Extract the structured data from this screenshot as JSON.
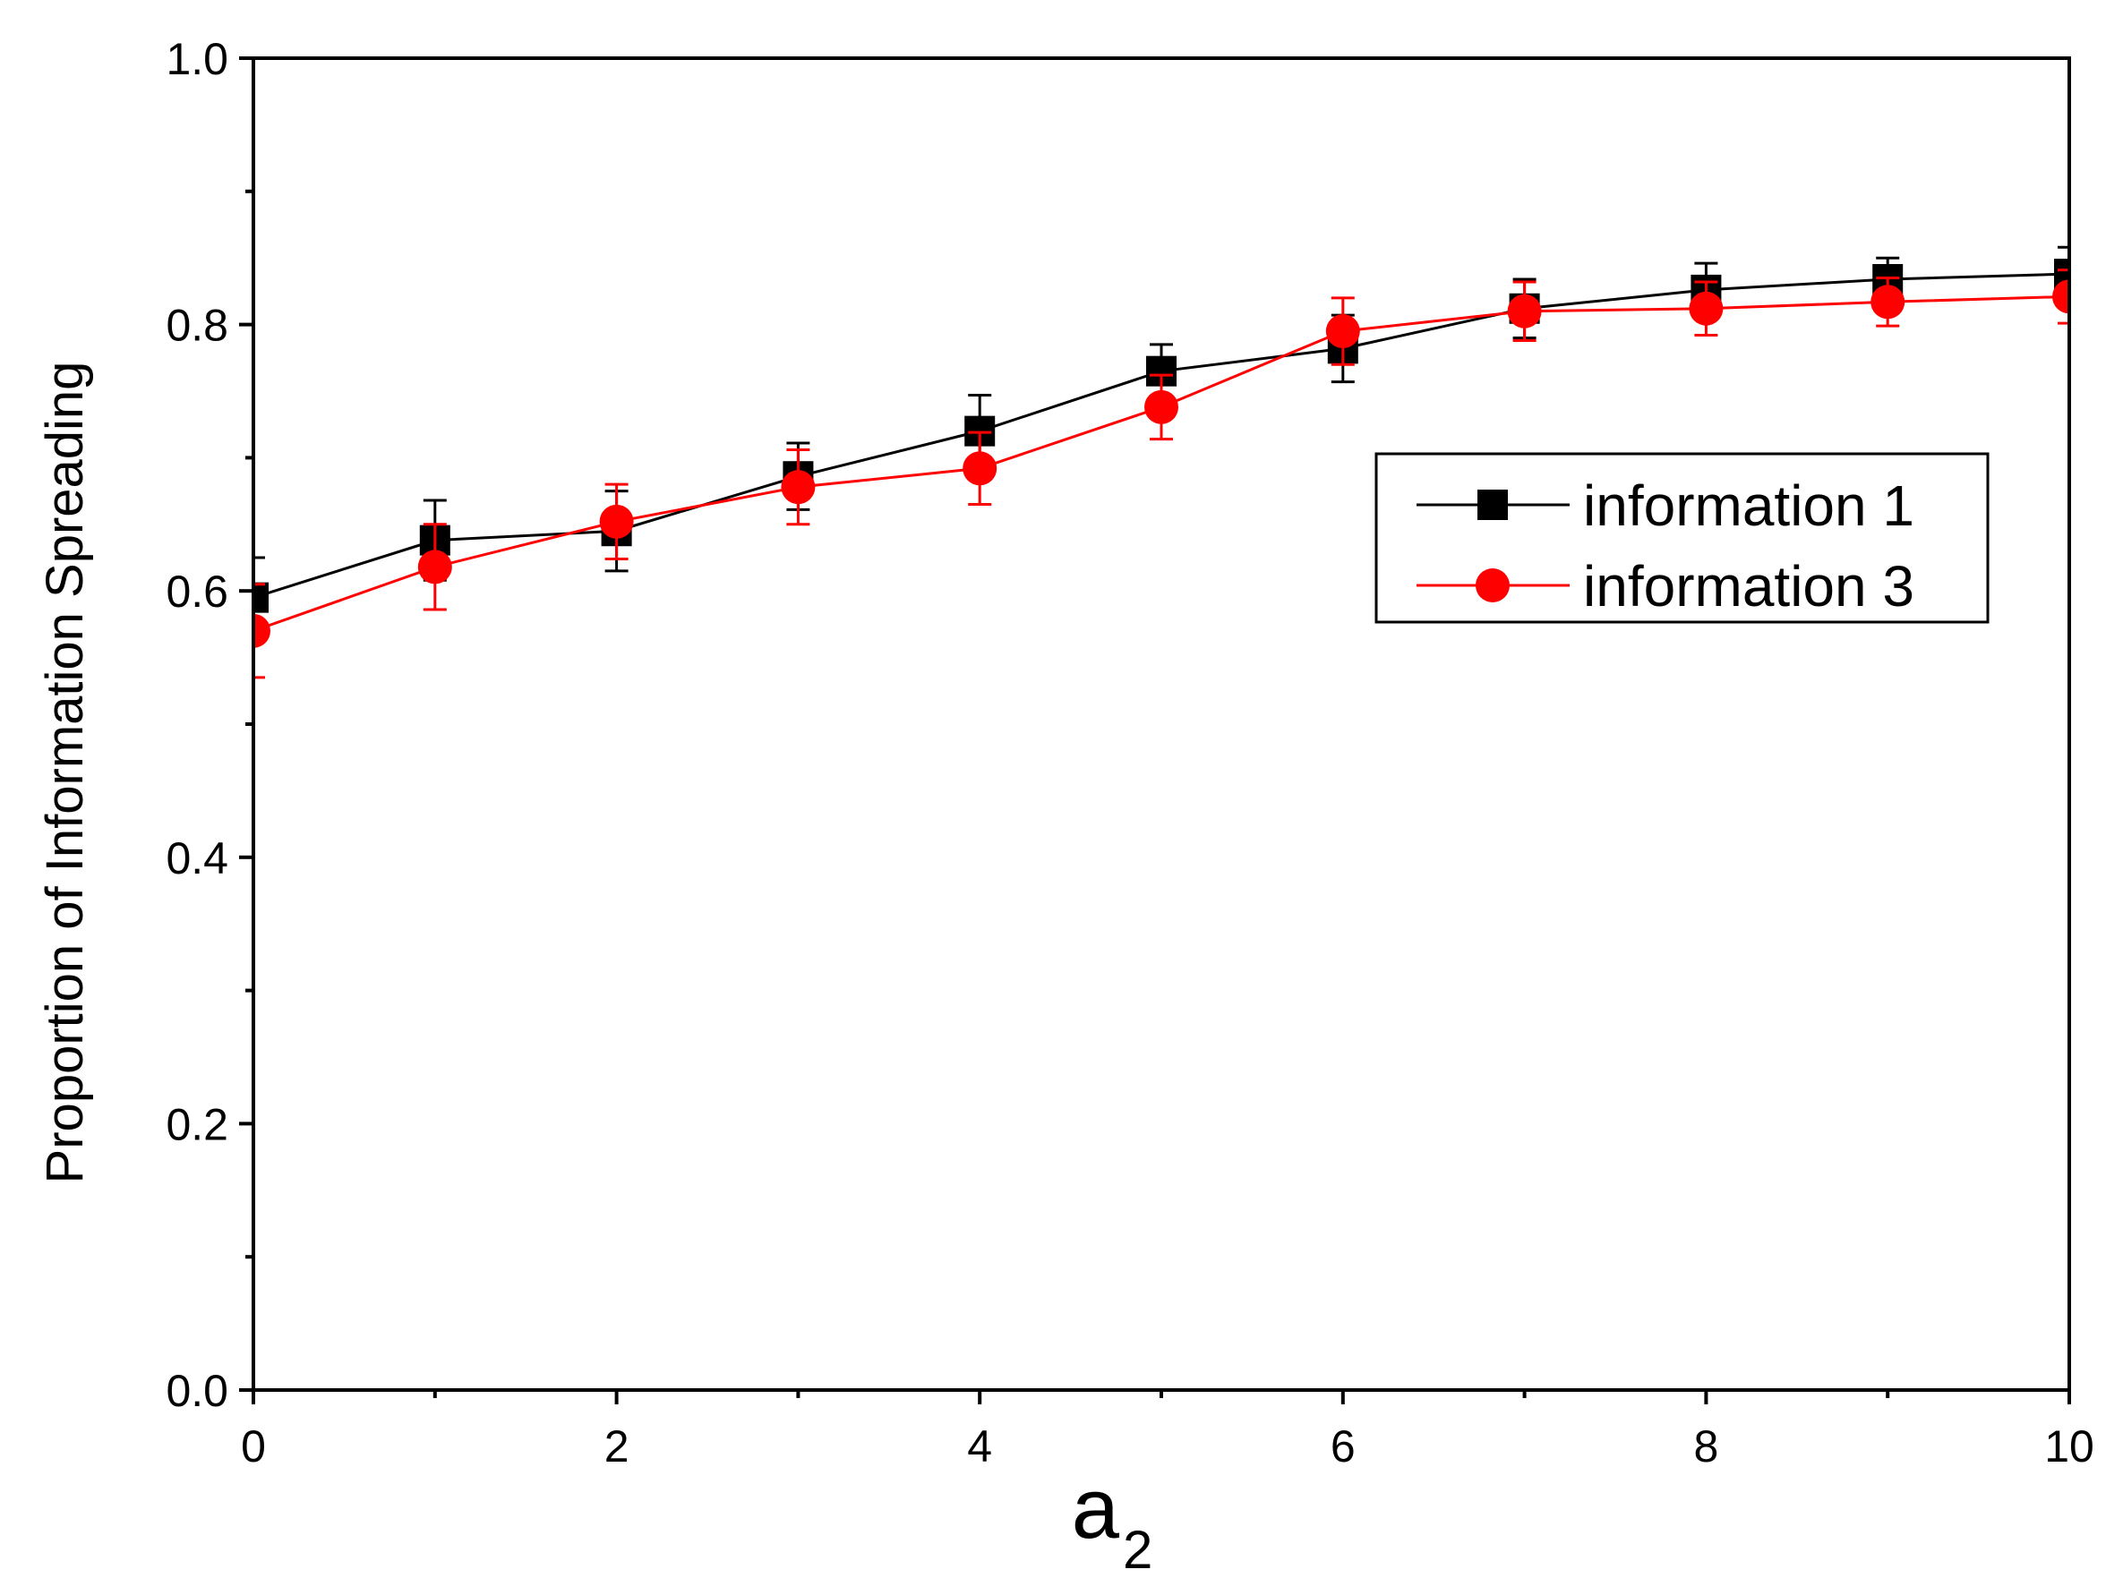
{
  "chart_data": {
    "type": "line",
    "xlabel": "a",
    "xlabel_subscript": "2",
    "ylabel": "Proportion of Information Spreading",
    "xlim": [
      0,
      10
    ],
    "ylim": [
      0.0,
      1.0
    ],
    "x_ticks": [
      "0",
      "2",
      "4",
      "6",
      "8",
      "10"
    ],
    "y_ticks": [
      "0.0",
      "0.2",
      "0.4",
      "0.6",
      "0.8",
      "1.0"
    ],
    "grid": false,
    "legend_position": "right",
    "series": [
      {
        "name": "information 1",
        "color": "#000000",
        "marker": "square",
        "x": [
          0,
          1,
          2,
          3,
          4,
          5,
          6,
          7,
          8,
          9,
          10
        ],
        "y": [
          0.595,
          0.638,
          0.645,
          0.686,
          0.72,
          0.765,
          0.782,
          0.812,
          0.826,
          0.834,
          0.838
        ],
        "error": [
          0.03,
          0.03,
          0.03,
          0.025,
          0.027,
          0.02,
          0.025,
          0.022,
          0.02,
          0.016,
          0.02
        ]
      },
      {
        "name": "information 3",
        "color": "#ff0000",
        "marker": "circle",
        "x": [
          0,
          1,
          2,
          3,
          4,
          5,
          6,
          7,
          8,
          9,
          10
        ],
        "y": [
          0.57,
          0.618,
          0.652,
          0.678,
          0.692,
          0.738,
          0.795,
          0.81,
          0.812,
          0.817,
          0.821
        ],
        "error": [
          0.035,
          0.032,
          0.028,
          0.028,
          0.027,
          0.024,
          0.025,
          0.022,
          0.02,
          0.018,
          0.02
        ]
      }
    ]
  }
}
